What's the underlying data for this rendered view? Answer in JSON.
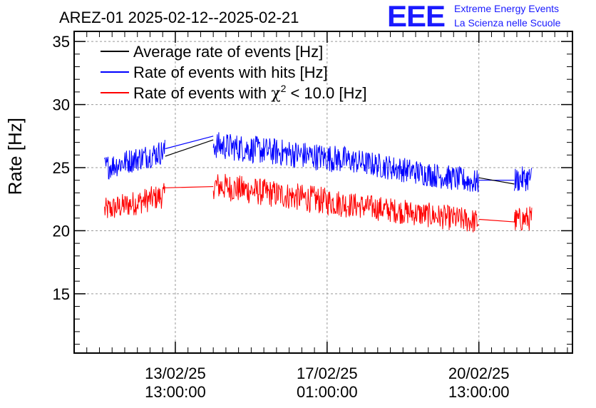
{
  "header": {
    "title": "AREZ-01 2025-02-12--2025-02-21",
    "logo": {
      "letters": "EEE",
      "line1": "Extreme Energy Events",
      "line2": "La Scienza nelle Scuole"
    }
  },
  "chart_data": {
    "type": "line",
    "title": "AREZ-01 2025-02-12--2025-02-21",
    "ylabel": "Rate [Hz]",
    "xlabel": "",
    "ylim": [
      10.3,
      35.8
    ],
    "y_ticks": [
      15,
      20,
      25,
      30,
      35
    ],
    "xlim_days": [
      0,
      9.85
    ],
    "x_ticks": [
      {
        "line1": "13/02/25",
        "line2": "13:00:00",
        "t": 2.0
      },
      {
        "line1": "17/02/25",
        "line2": "01:00:00",
        "t": 5.0
      },
      {
        "line1": "20/02/25",
        "line2": "13:00:00",
        "t": 8.0
      }
    ],
    "grid": true,
    "legend_position": "top-left",
    "legend": [
      {
        "label": "Average rate of events [Hz]",
        "color": "#000000"
      },
      {
        "label": "Rate of events with hits [Hz]",
        "color": "#0000ff"
      },
      {
        "label_prefix": "Rate of events with ",
        "chi": "χ",
        "sup": "2",
        "label_suffix": " < 10.0 [Hz]",
        "color": "#ff0000"
      }
    ],
    "segments": [
      {
        "t_start": 0.6,
        "t_end": 1.8,
        "hits_start": 25.0,
        "hits_end": 26.3,
        "hits_noise": 1.0,
        "chi2_start": 21.6,
        "chi2_end": 22.8,
        "chi2_noise": 1.0
      },
      {
        "t_start": 2.75,
        "t_end": 5.4,
        "hits_start": 26.8,
        "hits_end": 25.6,
        "hits_noise": 1.1,
        "chi2_start": 23.6,
        "chi2_end": 22.1,
        "chi2_noise": 1.1
      },
      {
        "t_start": 5.4,
        "t_end": 8.0,
        "hits_start": 25.6,
        "hits_end": 23.8,
        "hits_noise": 1.0,
        "chi2_start": 22.1,
        "chi2_end": 20.7,
        "chi2_noise": 1.0
      },
      {
        "t_start": 8.7,
        "t_end": 9.05,
        "hits_start": 24.0,
        "hits_end": 24.2,
        "hits_noise": 1.0,
        "chi2_start": 20.8,
        "chi2_end": 21.0,
        "chi2_noise": 1.0
      }
    ],
    "gap_connectors": {
      "average": [
        [
          1.8,
          25.9,
          2.75,
          27.2
        ],
        [
          8.0,
          24.2,
          8.7,
          23.7
        ]
      ],
      "hits": [
        [
          1.8,
          26.5,
          2.75,
          27.5
        ],
        [
          8.0,
          24.0,
          8.7,
          24.0
        ]
      ],
      "chi2": [
        [
          1.8,
          23.4,
          2.75,
          23.5
        ],
        [
          8.0,
          20.9,
          8.7,
          20.7
        ]
      ]
    },
    "series": [
      {
        "name": "Average rate of events [Hz]",
        "color": "#000000"
      },
      {
        "name": "Rate of events with hits [Hz]",
        "color": "#0000ff"
      },
      {
        "name": "Rate of events with χ2 < 10.0 [Hz]",
        "color": "#ff0000"
      }
    ]
  }
}
